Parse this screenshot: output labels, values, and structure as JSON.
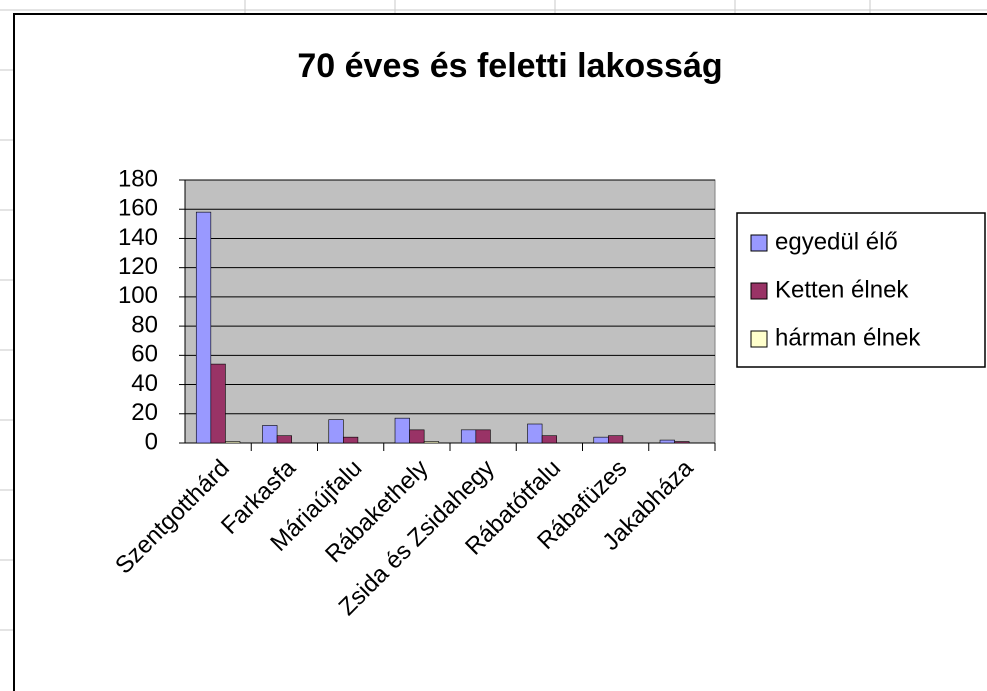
{
  "chart_data": {
    "type": "bar",
    "title": "70 éves és feletti lakosság",
    "categories": [
      "Szentgotthárd",
      "Farkasfa",
      "Máriaújfalu",
      "Rábakethely",
      "Zsida és Zsidahegy",
      "Rábatótfalu",
      "Rábafüzes",
      "Jakabháza"
    ],
    "series": [
      {
        "name": "egyedül élő",
        "color": "#9999ff",
        "values": [
          158,
          12,
          16,
          17,
          9,
          13,
          4,
          2
        ]
      },
      {
        "name": "Ketten élnek",
        "color": "#993366",
        "values": [
          54,
          5,
          4,
          9,
          9,
          5,
          5,
          1
        ]
      },
      {
        "name": "hárman élnek",
        "color": "#ffffcc",
        "values": [
          1,
          0,
          0,
          1,
          0,
          0,
          0,
          0
        ]
      }
    ],
    "ylim": [
      0,
      180
    ],
    "yticks": [
      0,
      20,
      40,
      60,
      80,
      100,
      120,
      140,
      160,
      180
    ],
    "grid": true,
    "legend": "right"
  }
}
